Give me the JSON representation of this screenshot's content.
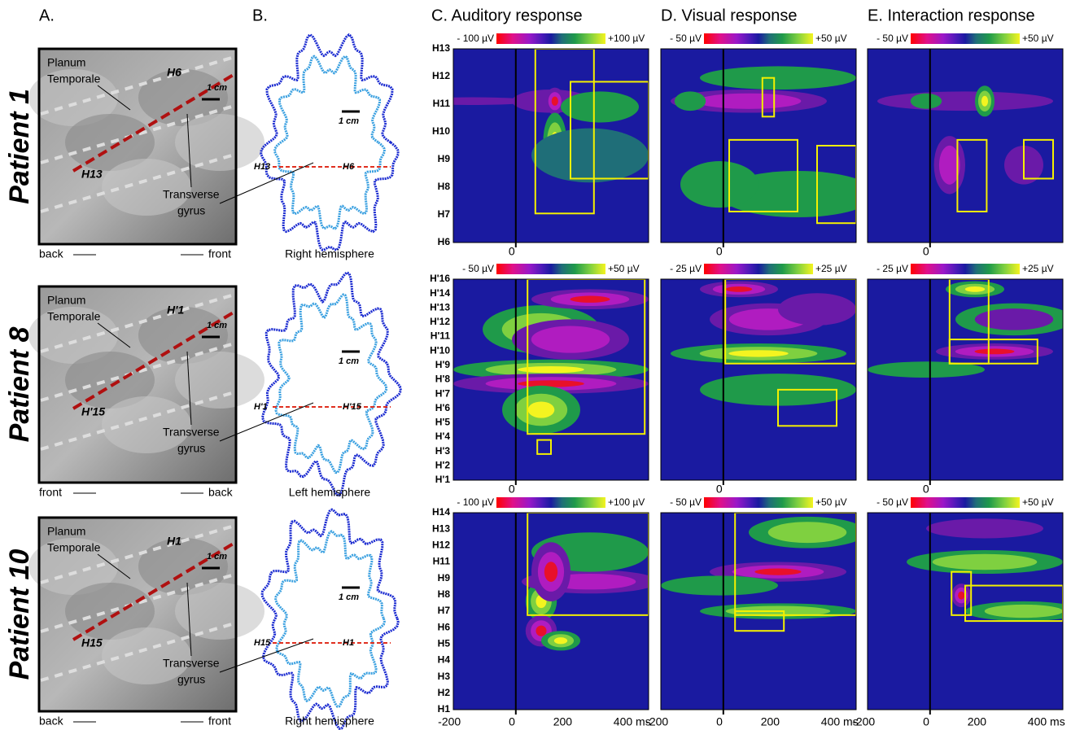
{
  "column_headers": [
    "A.",
    "B.",
    "C. Auditory response",
    "D. Visual response",
    "E. Interaction response"
  ],
  "x_ticks": [
    "-200",
    "0",
    "200",
    "400 ms"
  ],
  "patients": [
    {
      "name": "Patient 1",
      "anatomy": {
        "planum": [
          "Planum",
          "Temporale"
        ],
        "gyrus": [
          "Transverse",
          "gyrus"
        ],
        "end_a": "H6",
        "end_b": "H13",
        "scale": "1 cm",
        "left": "back",
        "right": "front"
      },
      "section": {
        "scale": "1 cm",
        "end_a": "H13",
        "end_b": "H6",
        "caption": "Right hemisphere"
      },
      "electrodes": [
        "H13",
        "H12",
        "H11",
        "H10",
        "H9",
        "H8",
        "H7",
        "H6"
      ],
      "panels": [
        {
          "min": "- 100 µV",
          "max": "+100 µV"
        },
        {
          "min": "- 50 µV",
          "max": "+50 µV"
        },
        {
          "min": "- 50 µV",
          "max": "+50 µV"
        }
      ],
      "zero": "0"
    },
    {
      "name": "Patient 8",
      "anatomy": {
        "planum": [
          "Planum",
          "Temporale"
        ],
        "gyrus": [
          "Transverse",
          "gyrus"
        ],
        "end_a": "H'1",
        "end_b": "H'15",
        "scale": "1 cm",
        "left": "front",
        "right": "back"
      },
      "section": {
        "scale": "1 cm",
        "end_a": "H'1",
        "end_b": "H'15",
        "caption": "Left hemisphere"
      },
      "electrodes": [
        "H'16",
        "H'14",
        "H'13",
        "H'12",
        "H'11",
        "H'10",
        "H'9",
        "H'8",
        "H'7",
        "H'6",
        "H'5",
        "H'4",
        "H'3",
        "H'2",
        "H'1"
      ],
      "panels": [
        {
          "min": "- 50 µV",
          "max": "+50 µV"
        },
        {
          "min": "- 25 µV",
          "max": "+25 µV"
        },
        {
          "min": "- 25 µV",
          "max": "+25 µV"
        }
      ],
      "zero": "0"
    },
    {
      "name": "Patient 10",
      "anatomy": {
        "planum": [
          "Planum",
          "Temporale"
        ],
        "gyrus": [
          "Transverse",
          "gyrus"
        ],
        "end_a": "H1",
        "end_b": "H15",
        "scale": "1 cm",
        "left": "back",
        "right": "front"
      },
      "section": {
        "scale": "1 cm",
        "end_a": "H15",
        "end_b": "H1",
        "caption": "Right hemisphere"
      },
      "electrodes": [
        "H14",
        "H13",
        "H12",
        "H11",
        "H9",
        "H8",
        "H7",
        "H6",
        "H5",
        "H4",
        "H3",
        "H2",
        "H1"
      ],
      "panels": [
        {
          "min": "- 100 µV",
          "max": "+100 µV"
        },
        {
          "min": "- 50 µV",
          "max": "+50 µV"
        },
        {
          "min": "- 50 µV",
          "max": "+50 µV"
        }
      ],
      "zero": "0"
    }
  ]
}
